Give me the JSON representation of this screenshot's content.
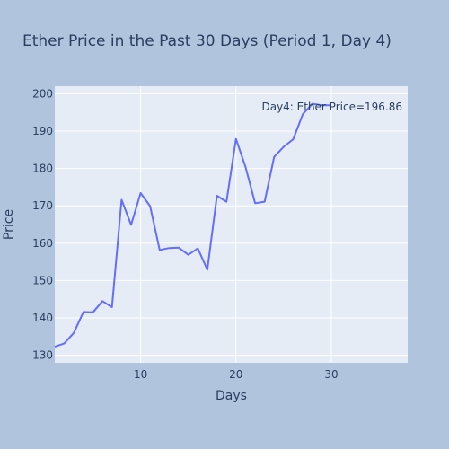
{
  "chart_data": {
    "type": "line",
    "title": "Ether Price in the Past 30 Days (Period 1, Day 4)",
    "xlabel": "Days",
    "ylabel": "Price",
    "xlim": [
      1,
      38
    ],
    "ylim": [
      128,
      202
    ],
    "x_ticks": [
      10,
      20,
      30
    ],
    "y_ticks": [
      130,
      140,
      150,
      160,
      170,
      180,
      190,
      200
    ],
    "grid": true,
    "line_color": "#636efa",
    "plot_bg": "#e5ecf6",
    "paper_bg": "#b0c4de",
    "annotation": "Day4: Ether Price=196.86",
    "series": [
      {
        "x": [
          1,
          2,
          3,
          4,
          5,
          6,
          7,
          8,
          9,
          10,
          11,
          12,
          13,
          14,
          15,
          16,
          17,
          18,
          19,
          20,
          21,
          22,
          23,
          24,
          25,
          26,
          27,
          28,
          29,
          30
        ],
        "values": [
          132.3,
          133.2,
          136.0,
          141.6,
          141.5,
          144.5,
          142.9,
          171.6,
          164.9,
          173.4,
          169.9,
          158.2,
          158.7,
          158.8,
          156.9,
          158.6,
          152.9,
          172.7,
          171.1,
          187.9,
          180.4,
          170.7,
          171.1,
          183.1,
          185.8,
          187.8,
          194.5,
          197.3,
          196.9,
          196.9
        ]
      }
    ]
  }
}
